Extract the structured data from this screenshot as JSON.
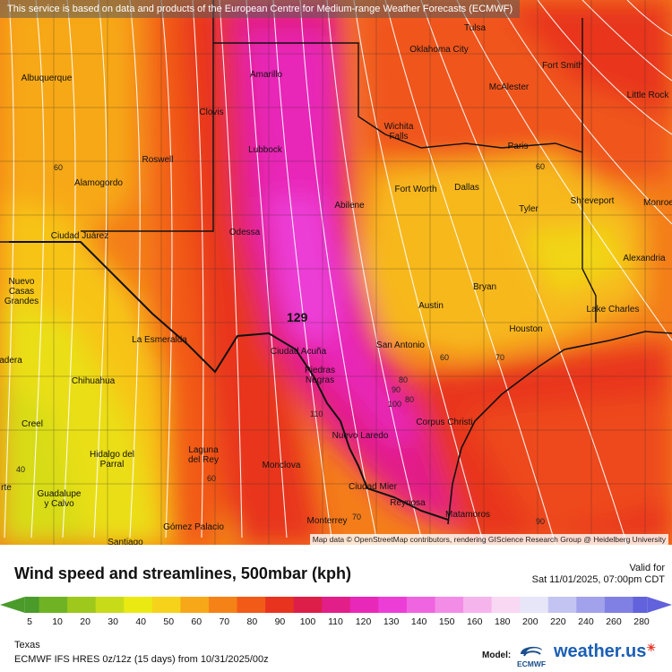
{
  "banner": "This service is based on data and products of the European Centre for Medium-range Weather Forecasts (ECMWF)",
  "map_credit": "Map data © OpenStreetMap contributors, rendering GIScience Research Group @ Heidelberg University",
  "cities": [
    {
      "id": "tulsa",
      "name": "Tulsa"
    },
    {
      "id": "oklahoma",
      "name": "Oklahoma City"
    },
    {
      "id": "albuquerque",
      "name": "Albuquerque"
    },
    {
      "id": "amarillo",
      "name": "Amarillo"
    },
    {
      "id": "fortsmith",
      "name": "Fort Smith"
    },
    {
      "id": "mcalester",
      "name": "McAlester"
    },
    {
      "id": "littlerock",
      "name": "Little Rock"
    },
    {
      "id": "clovis",
      "name": "Clovis"
    },
    {
      "id": "wichita",
      "name": "Wichita Falls"
    },
    {
      "id": "lubbock",
      "name": "Lubbock"
    },
    {
      "id": "paris",
      "name": "Paris"
    },
    {
      "id": "roswell",
      "name": "Roswell"
    },
    {
      "id": "alamogordo",
      "name": "Alamogordo"
    },
    {
      "id": "fortworth",
      "name": "Fort Worth"
    },
    {
      "id": "dallas",
      "name": "Dallas"
    },
    {
      "id": "abilene",
      "name": "Abilene"
    },
    {
      "id": "shreveport",
      "name": "Shreveport"
    },
    {
      "id": "monroe",
      "name": "Monroe"
    },
    {
      "id": "tyler",
      "name": "Tyler"
    },
    {
      "id": "juarez",
      "name": "Ciudad Juárez"
    },
    {
      "id": "odessa",
      "name": "Odessa"
    },
    {
      "id": "alexandria",
      "name": "Alexandria"
    },
    {
      "id": "nuevocasas",
      "name": "Nuevo Casas Grandes"
    },
    {
      "id": "bryan",
      "name": "Bryan"
    },
    {
      "id": "austin",
      "name": "Austin"
    },
    {
      "id": "lakecharles",
      "name": "Lake Charles"
    },
    {
      "id": "houston",
      "name": "Houston"
    },
    {
      "id": "esmeralda",
      "name": "La Esmeralda"
    },
    {
      "id": "sanantonio",
      "name": "San Antonio"
    },
    {
      "id": "acuna",
      "name": "Ciudad Acuña"
    },
    {
      "id": "madera",
      "name": "adera"
    },
    {
      "id": "piedras",
      "name": "Piedras Negras"
    },
    {
      "id": "chihuahua",
      "name": "Chihuahua"
    },
    {
      "id": "corpus",
      "name": "Corpus Christi"
    },
    {
      "id": "creel",
      "name": "Creel"
    },
    {
      "id": "nuevolaredo",
      "name": "Nuevo Laredo"
    },
    {
      "id": "hidalgo",
      "name": "Hidalgo del Parral"
    },
    {
      "id": "laguna",
      "name": "Laguna del Rey"
    },
    {
      "id": "monclova",
      "name": "Monclova"
    },
    {
      "id": "mier",
      "name": "Ciudad Mier"
    },
    {
      "id": "guadalupe",
      "name": "Guadalupe y Calvo"
    },
    {
      "id": "reynosa",
      "name": "Reynosa"
    },
    {
      "id": "matamoros",
      "name": "Matamoros"
    },
    {
      "id": "monterrey",
      "name": "Monterrey"
    },
    {
      "id": "gomez",
      "name": "Gómez Palacio"
    },
    {
      "id": "santiago",
      "name": "Santiago"
    },
    {
      "id": "rte",
      "name": "rte"
    }
  ],
  "contour_values": [
    "60",
    "60",
    "60",
    "70",
    "80",
    "90",
    "100",
    "110",
    "60",
    "70",
    "40",
    "90",
    "80"
  ],
  "max_label": "129",
  "title": "Wind speed and streamlines, 500mbar (kph)",
  "valid_label": "Valid for",
  "valid_time": "Sat 11/01/2025, 07:00pm CDT",
  "colorbar": {
    "ticks": [
      "5",
      "10",
      "20",
      "30",
      "40",
      "50",
      "60",
      "70",
      "80",
      "90",
      "100",
      "110",
      "120",
      "130",
      "140",
      "150",
      "160",
      "180",
      "200",
      "220",
      "240",
      "260",
      "280"
    ],
    "colors": [
      "#4a9b2a",
      "#6fb324",
      "#9ec81c",
      "#c8db18",
      "#eaea12",
      "#f7d21a",
      "#f7a818",
      "#f58216",
      "#f25a18",
      "#e8341e",
      "#dd1e48",
      "#e21e88",
      "#e828b8",
      "#ec3ed6",
      "#ef64e0",
      "#f38ce6",
      "#f6b4ec",
      "#f9d8f4",
      "#e6e6f8",
      "#c4c4f2",
      "#a2a2ec",
      "#8080e4",
      "#6262dc"
    ]
  },
  "region": "Texas",
  "model_run": "ECMWF IFS HRES 0z/12z (15 days)  from  10/31/2025/00z",
  "model_label": "Model:",
  "ecmwf_logo": "ECMWF",
  "brand": "weather.us"
}
